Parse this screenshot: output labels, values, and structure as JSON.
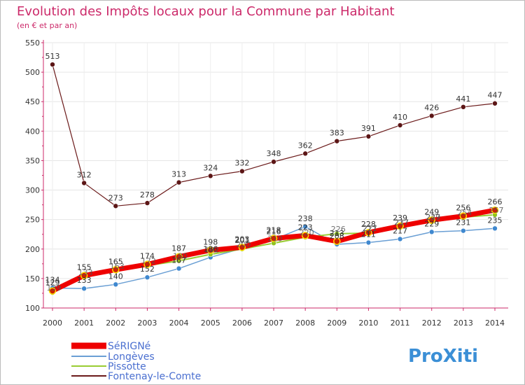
{
  "chart_data": {
    "type": "line",
    "title": "Evolution des Impôts locaux pour la Commune par Habitant",
    "subtitle": "(en € et par an)",
    "xlabel": "",
    "ylabel": "",
    "x": [
      "2000",
      "2001",
      "2002",
      "2003",
      "2004",
      "2005",
      "2006",
      "2007",
      "2008",
      "2009",
      "2010",
      "2011",
      "2012",
      "2013",
      "2014"
    ],
    "ylim": [
      100,
      550
    ],
    "yticks": [
      100,
      150,
      200,
      250,
      300,
      350,
      400,
      450,
      500,
      550
    ],
    "grid": true,
    "legend_position": "bottom-left",
    "series": [
      {
        "name": "Fontenay-le-Comte",
        "color": "#6b1a1a",
        "marker": "#5c1616",
        "width": 1.2,
        "labels": true,
        "values": [
          513,
          312,
          273,
          278,
          313,
          324,
          332,
          348,
          362,
          383,
          391,
          410,
          426,
          441,
          447
        ]
      },
      {
        "name": "Longèves",
        "color": "#6a9fd4",
        "marker": "#3f88cf",
        "width": 1.5,
        "labels": true,
        "values": [
          134,
          133,
          140,
          152,
          167,
          186,
          201,
          216,
          238,
          208,
          211,
          217,
          229,
          231,
          235
        ]
      },
      {
        "name": "Pissotte",
        "color": "#99cc33",
        "marker": "#8fc21f",
        "width": 2,
        "labels": false,
        "values": [
          126,
          152,
          163,
          172,
          180,
          191,
          200,
          210,
          220,
          226,
          227,
          237,
          246,
          254,
          258
        ]
      },
      {
        "name": "SéRIGNé",
        "color": "#ee0000",
        "marker": "#cc2200",
        "width": 7,
        "labels": true,
        "values": [
          129,
          155,
          165,
          174,
          187,
          198,
          203,
          218,
          223,
          213,
          228,
          239,
          249,
          256,
          266
        ]
      }
    ],
    "value_labels": {
      "Fontenay-le-Comte": [
        "513",
        "312",
        "273",
        "278",
        "313",
        "324",
        "332",
        "348",
        "362",
        "383",
        "391",
        "410",
        "426",
        "441",
        "447"
      ],
      "Longèves": [
        "134",
        "133",
        "140",
        "152",
        "167",
        "186",
        "201",
        "216",
        "238",
        "208",
        "211",
        "217",
        "229",
        "231",
        "235"
      ],
      "SéRIGNé": [
        "129",
        "155",
        "165",
        "174",
        "187",
        "198",
        "203",
        "218",
        "223",
        "213",
        "228",
        "239",
        "249",
        "256",
        "266"
      ]
    },
    "extra_labels": [
      "139",
      "133",
      "163",
      "172",
      "180",
      "192",
      "200",
      "210",
      "220",
      "226",
      "227",
      "237",
      "247",
      "254",
      "257",
      "211",
      "217",
      "229"
    ]
  },
  "legend": {
    "items": [
      "SéRIGNé",
      "Longèves",
      "Pissotte",
      "Fontenay-le-Comte"
    ]
  },
  "logo": {
    "text": "ProXiti"
  }
}
